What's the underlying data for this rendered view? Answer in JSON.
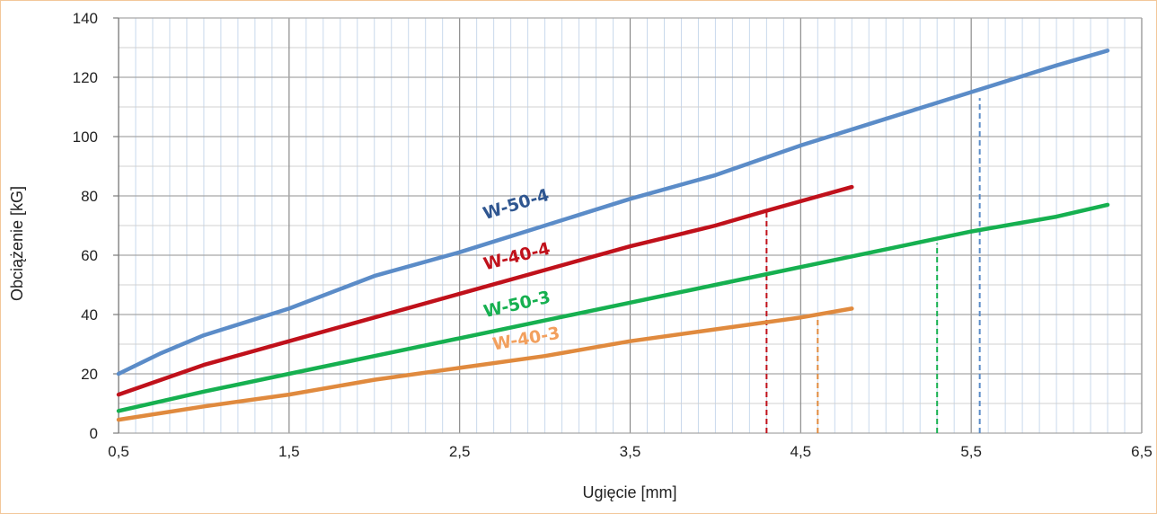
{
  "chart_data": {
    "type": "line",
    "xlabel": "Ugięcie [mm]",
    "ylabel": "Obciążenie [kG]",
    "xlim": [
      0.5,
      6.5
    ],
    "ylim": [
      0,
      140
    ],
    "x_ticks": [
      "0,5",
      "1,5",
      "2,5",
      "3,5",
      "4,5",
      "5,5",
      "6,5"
    ],
    "y_ticks": [
      "0",
      "20",
      "40",
      "60",
      "80",
      "100",
      "120",
      "140"
    ],
    "grid": true,
    "legend": "inline labels",
    "series": [
      {
        "name": "W-50-4",
        "color": "#5b8cc8",
        "label_color": "#2f5690",
        "x": [
          0.5,
          0.75,
          1.0,
          1.5,
          2.0,
          2.5,
          3.0,
          3.5,
          4.0,
          4.5,
          5.0,
          5.5,
          6.0,
          6.3
        ],
        "y": [
          20,
          27,
          33,
          42,
          53,
          61,
          70,
          79,
          87,
          97,
          106,
          115,
          124,
          129
        ],
        "marker_x": 5.55,
        "marker_y": 113
      },
      {
        "name": "W-40-4",
        "color": "#c0111b",
        "label_color": "#c0111b",
        "x": [
          0.5,
          1.0,
          1.5,
          2.0,
          2.5,
          3.0,
          3.5,
          4.0,
          4.3,
          4.8
        ],
        "y": [
          13,
          23,
          31,
          39,
          47,
          55,
          63,
          70,
          75,
          83
        ],
        "marker_x": 4.3,
        "marker_y": 75
      },
      {
        "name": "W-50-3",
        "color": "#16b050",
        "label_color": "#16b050",
        "x": [
          0.5,
          1.0,
          1.5,
          2.0,
          2.5,
          3.0,
          3.5,
          4.0,
          4.5,
          5.0,
          5.5,
          6.0,
          6.3
        ],
        "y": [
          7.5,
          14,
          20,
          26,
          32,
          38,
          44,
          50,
          56,
          62,
          68,
          73,
          77
        ],
        "marker_x": 5.3,
        "marker_y": 64
      },
      {
        "name": "W-40-3",
        "color": "#e08a3e",
        "label_color": "#f2a05e",
        "x": [
          0.5,
          1.0,
          1.5,
          2.0,
          2.5,
          3.0,
          3.5,
          4.0,
          4.5,
          4.8
        ],
        "y": [
          4.5,
          9,
          13,
          18,
          22,
          26,
          31,
          35,
          39,
          42
        ],
        "marker_x": 4.6,
        "marker_y": 39
      }
    ]
  }
}
